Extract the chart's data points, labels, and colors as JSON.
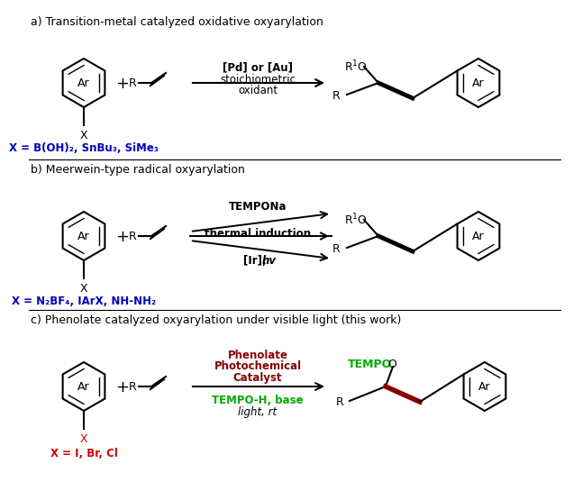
{
  "title_a": "a) Transition-metal catalyzed oxidative oxyarylation",
  "title_b": "b) Meerwein-type radical oxyarylation",
  "title_c": "c) Phenolate catalyzed oxyarylation under visible light (this work)",
  "x_label_a": "X = B(OH)₂, SnBu₃, SiMe₃",
  "x_label_b": "X = N₂BF₄, IArX, NH-NH₂",
  "x_label_c": "X = I, Br, Cl",
  "arr_a1": "[Pd] or [Au]",
  "arr_a2": "stoichiometric",
  "arr_a3": "oxidant",
  "arr_b1": "TEMPONa",
  "arr_b2": "thermal induction",
  "arr_b3": "[Ir],",
  "arr_b3b": "hv",
  "arr_c1": "Phenolate",
  "arr_c2": "Photochemical",
  "arr_c3": "Catalyst",
  "arr_c4": "TEMPO-H, base",
  "arr_c5": "light, rt",
  "black": "#000000",
  "blue": "#0000bb",
  "red": "#cc0000",
  "dark_red": "#880000",
  "green": "#00aa00",
  "bg": "#ffffff"
}
